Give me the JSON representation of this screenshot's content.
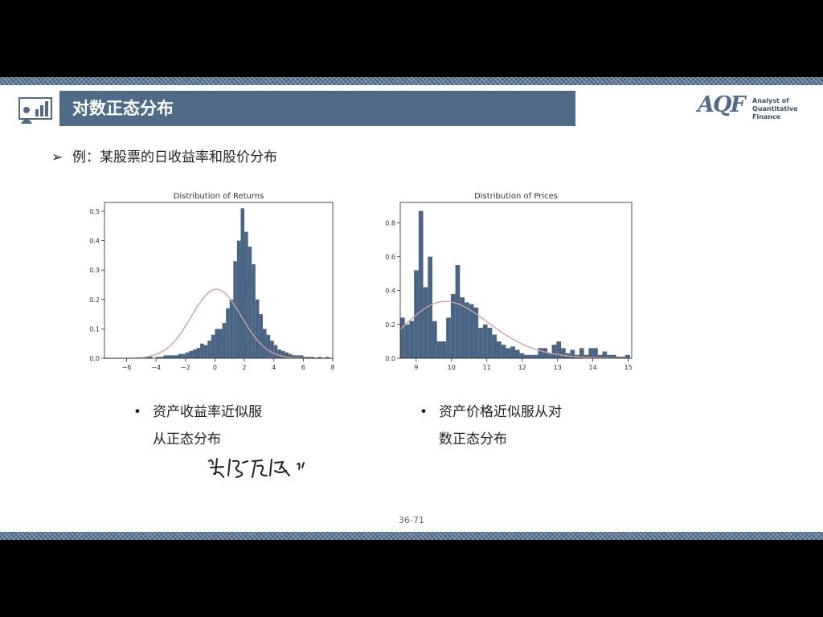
{
  "header": {
    "title": "对数正态分布",
    "logo_mark": "AQF",
    "logo_line1": "Analyst of",
    "logo_line2": "Quantitative Finance"
  },
  "bullet": {
    "arrow": "➢",
    "text": "例：某股票的日收益率和股价分布"
  },
  "notes": {
    "left_line1": "资产收益率近似服",
    "left_line2": "从正态分布",
    "right_line1": "资产价格近似服从对",
    "right_line2": "数正态分布",
    "dot": "•"
  },
  "page_number": "36-71",
  "colors": {
    "bar": "#4a6483",
    "title_bar": "#4f6b88",
    "curve": "#c9a2a2",
    "band": "#3d5a78"
  },
  "chart_data": [
    {
      "type": "bar",
      "title": "Distribution of Returns",
      "xlabel": "",
      "ylabel": "",
      "xlim": [
        -7.5,
        8
      ],
      "ylim": [
        0,
        0.53
      ],
      "xticks": [
        -6,
        -4,
        -2,
        0,
        2,
        4,
        6,
        8
      ],
      "xtick_labels": [
        "−6",
        "−4",
        "−2",
        "0",
        "2",
        "4",
        "6",
        "8"
      ],
      "yticks": [
        0.0,
        0.1,
        0.2,
        0.3,
        0.4,
        0.5
      ],
      "ytick_labels": [
        "0.0",
        "0.1",
        "0.2",
        "0.3",
        "0.4",
        "0.5"
      ],
      "bin_start": -7.5,
      "bin_width": 0.25,
      "values": [
        0,
        0,
        0,
        0,
        0,
        0,
        0,
        0,
        0,
        0,
        0,
        0.005,
        0.005,
        0,
        0.005,
        0.005,
        0.01,
        0.01,
        0.01,
        0.01,
        0.015,
        0.015,
        0.02,
        0.025,
        0.03,
        0.035,
        0.05,
        0.045,
        0.06,
        0.08,
        0.1,
        0.1,
        0.12,
        0.17,
        0.2,
        0.33,
        0.4,
        0.51,
        0.43,
        0.38,
        0.32,
        0.2,
        0.15,
        0.1,
        0.08,
        0.06,
        0.045,
        0.03,
        0.025,
        0.02,
        0.015,
        0.01,
        0.01,
        0.01,
        0.005,
        0.005,
        0.005,
        0,
        0.005,
        0,
        0.005,
        0,
        0
      ],
      "fit_curve": {
        "kind": "normal",
        "mean": 0.1,
        "sd": 1.7
      }
    },
    {
      "type": "bar",
      "title": "Distribution of Prices",
      "xlabel": "",
      "ylabel": "",
      "xlim": [
        8.55,
        15.1
      ],
      "ylim": [
        0,
        0.92
      ],
      "xticks": [
        9,
        10,
        11,
        12,
        13,
        14,
        15
      ],
      "xtick_labels": [
        "9",
        "10",
        "11",
        "12",
        "13",
        "14",
        "15"
      ],
      "yticks": [
        0.0,
        0.2,
        0.4,
        0.6,
        0.8
      ],
      "ytick_labels": [
        "0.0",
        "0.2",
        "0.4",
        "0.6",
        "0.8"
      ],
      "bin_start": 8.55,
      "bin_width": 0.13,
      "values": [
        0.24,
        0.2,
        0.22,
        0.52,
        0.87,
        0.42,
        0.6,
        0.22,
        0.1,
        0.1,
        0.24,
        0.38,
        0.55,
        0.36,
        0.33,
        0.32,
        0.3,
        0.18,
        0.2,
        0.18,
        0.14,
        0.1,
        0.08,
        0.06,
        0.07,
        0.05,
        0.03,
        0.02,
        0.02,
        0.02,
        0.06,
        0.06,
        0.03,
        0.08,
        0.1,
        0.06,
        0.03,
        0.05,
        0.02,
        0.06,
        0.02,
        0.06,
        0.06,
        0.02,
        0.04,
        0.02,
        0.02,
        0.01,
        0.01,
        0.02
      ],
      "fit_curve": {
        "kind": "lognormal",
        "mu": 2.3,
        "sigma": 0.12
      }
    }
  ]
}
